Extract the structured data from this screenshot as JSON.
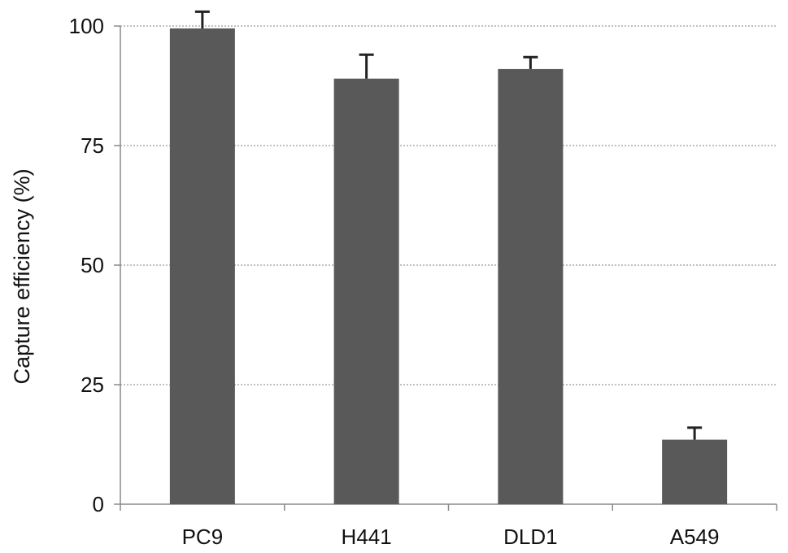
{
  "chart_data": {
    "type": "bar",
    "title": "",
    "xlabel": "",
    "ylabel": "Capture efficiency (%)",
    "categories": [
      "PC9",
      "H441",
      "DLD1",
      "A549"
    ],
    "values": [
      99.5,
      89,
      91,
      13.5
    ],
    "error": [
      3.5,
      5,
      2.5,
      2.5
    ],
    "ylim": [
      0,
      100
    ],
    "yticks": [
      0,
      25,
      50,
      75,
      100
    ],
    "ytick_labels": [
      "0",
      "25",
      "50",
      "75",
      "100"
    ],
    "grid": true,
    "legend": "none",
    "colors": {
      "bar": "#595959",
      "grid": "#9a9a9a",
      "axis": "#8a8a8a",
      "errorbar": "#222222",
      "text": "#111111"
    }
  }
}
